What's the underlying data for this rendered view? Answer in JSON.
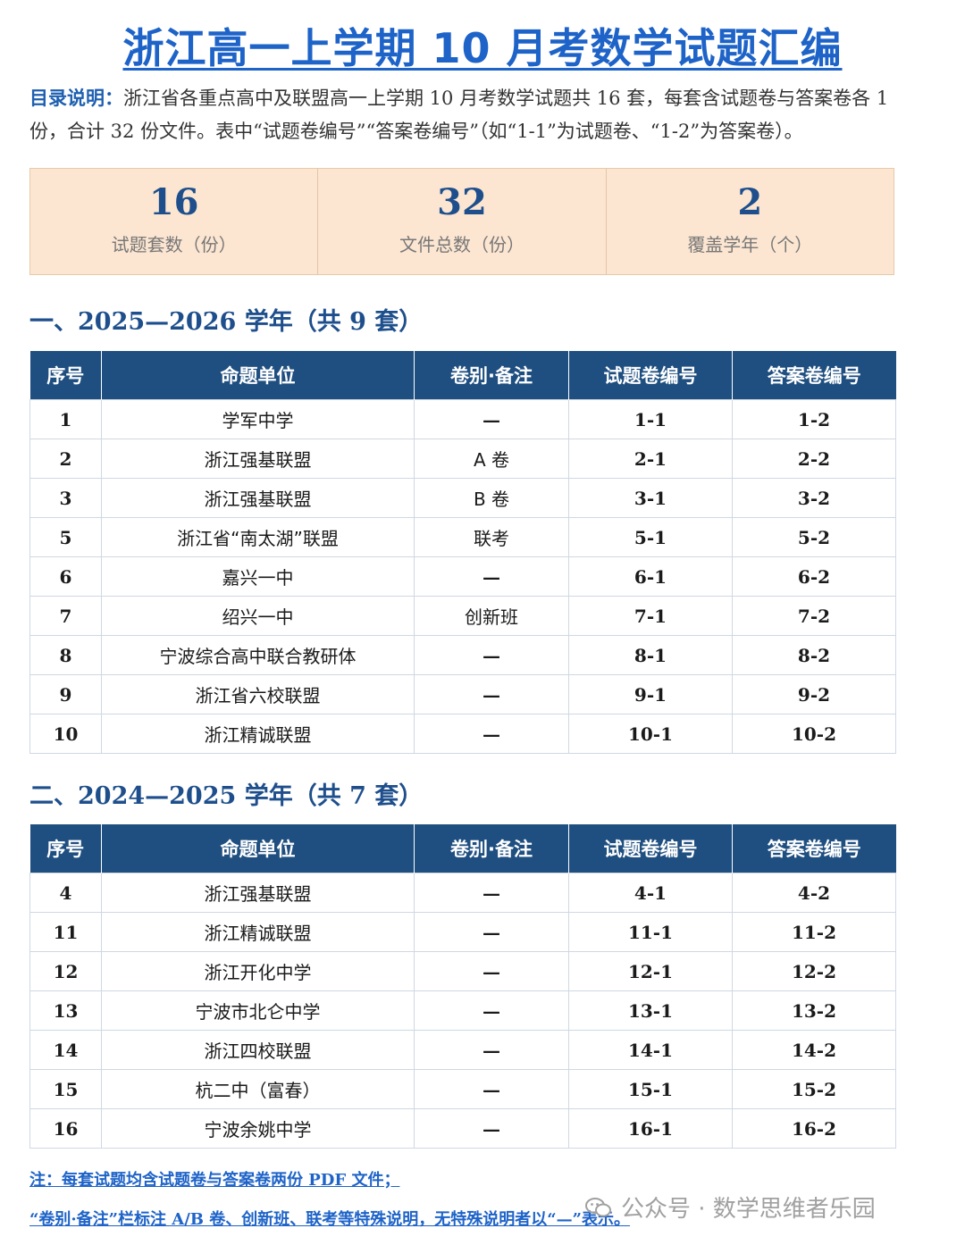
{
  "title": "浙江高一上学期 10 月考数学试题汇编",
  "intro": {
    "lead": "目录说明：",
    "text": "浙江省各重点高中及联盟高一上学期 10 月考数学试题共 16 套，每套含试题卷与答案卷各 1 份，合计 32 份文件。表中“试题卷编号”“答案卷编号”（如“1-1”为试题卷、“1-2”为答案卷）。"
  },
  "stats": [
    {
      "value": "16",
      "label": "试题套数（份）"
    },
    {
      "value": "32",
      "label": "文件总数（份）"
    },
    {
      "value": "2",
      "label": "覆盖学年（个）"
    }
  ],
  "headers": [
    "序号",
    "命题单位",
    "卷别·备注",
    "试题卷编号",
    "答案卷编号"
  ],
  "sections": [
    {
      "title": "一、2025—2026 学年（共 9 套）",
      "rows": [
        [
          "1",
          "学军中学",
          "—",
          "1-1",
          "1-2"
        ],
        [
          "2",
          "浙江强基联盟",
          "A 卷",
          "2-1",
          "2-2"
        ],
        [
          "3",
          "浙江强基联盟",
          "B 卷",
          "3-1",
          "3-2"
        ],
        [
          "5",
          "浙江省“南太湖”联盟",
          "联考",
          "5-1",
          "5-2"
        ],
        [
          "6",
          "嘉兴一中",
          "—",
          "6-1",
          "6-2"
        ],
        [
          "7",
          "绍兴一中",
          "创新班",
          "7-1",
          "7-2"
        ],
        [
          "8",
          "宁波综合高中联合教研体",
          "—",
          "8-1",
          "8-2"
        ],
        [
          "9",
          "浙江省六校联盟",
          "—",
          "9-1",
          "9-2"
        ],
        [
          "10",
          "浙江精诚联盟",
          "—",
          "10-1",
          "10-2"
        ]
      ]
    },
    {
      "title": "二、2024—2025 学年（共 7 套）",
      "rows": [
        [
          "4",
          "浙江强基联盟",
          "—",
          "4-1",
          "4-2"
        ],
        [
          "11",
          "浙江精诚联盟",
          "—",
          "11-1",
          "11-2"
        ],
        [
          "12",
          "浙江开化中学",
          "—",
          "12-1",
          "12-2"
        ],
        [
          "13",
          "宁波市北仑中学",
          "—",
          "13-1",
          "13-2"
        ],
        [
          "14",
          "浙江四校联盟",
          "—",
          "14-1",
          "14-2"
        ],
        [
          "15",
          "杭二中（富春）",
          "—",
          "15-1",
          "15-2"
        ],
        [
          "16",
          "宁波余姚中学",
          "—",
          "16-1",
          "16-2"
        ]
      ]
    }
  ],
  "notes": [
    "注：每套试题均含试题卷与答案卷两份 PDF 文件；",
    "“卷别·备注”栏标注 A/B 卷、创新班、联考等特殊说明，无特殊说明者以“—”表示。"
  ],
  "watermark": {
    "text": "公众号 · 数学思维者乐园",
    "icon": "wechat-icon"
  }
}
